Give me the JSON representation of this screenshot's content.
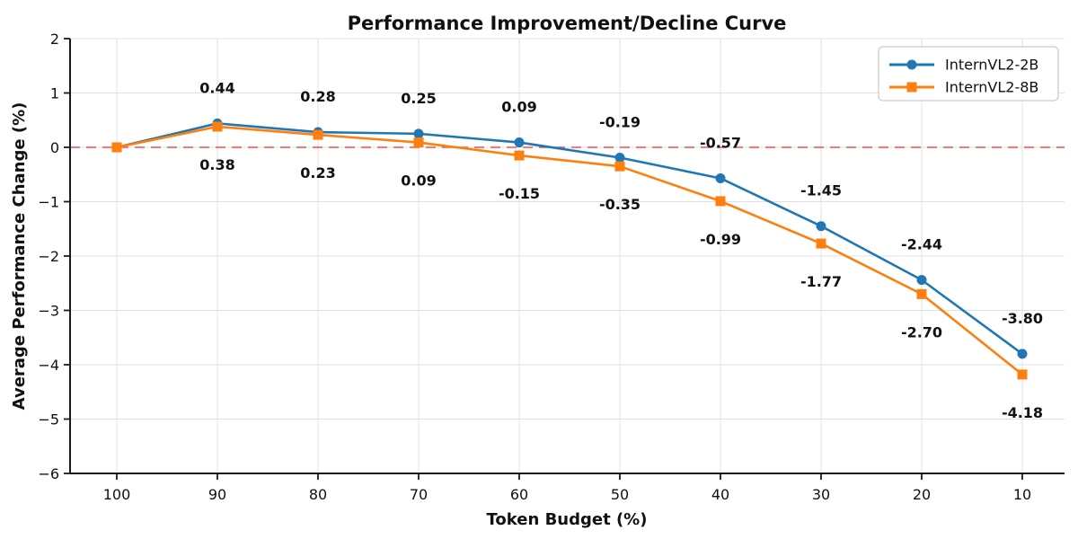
{
  "figure": {
    "background": "#ffffff"
  },
  "chart_data": {
    "type": "line",
    "title": "Performance Improvement/Decline Curve",
    "xlabel": "Token Budget (%)",
    "ylabel": "Average Performance Change (%)",
    "x": [
      100,
      90,
      80,
      70,
      60,
      50,
      40,
      30,
      20,
      10
    ],
    "xtick_labels": [
      "100",
      "90",
      "80",
      "70",
      "60",
      "50",
      "40",
      "30",
      "20",
      "10"
    ],
    "x_axis_reversed": true,
    "ylim": [
      -6,
      2
    ],
    "ytick_values": [
      2,
      1,
      0,
      -1,
      -2,
      -3,
      -4,
      -5,
      -6
    ],
    "ytick_labels": [
      "2",
      "1",
      "0",
      "−1",
      "−2",
      "−3",
      "−4",
      "−5",
      "−6"
    ],
    "grid": true,
    "zero_line": {
      "value": 0,
      "color": "#ff2222",
      "style": "dashed"
    },
    "data_label_colors": {
      "positive": "#008000",
      "negative": "#ff0000"
    },
    "legend": {
      "position": "upper right"
    },
    "series": [
      {
        "name": "InternVL2-2B",
        "color": "#1f77b4",
        "marker": "circle",
        "label_side": "above",
        "values": [
          0.0,
          0.44,
          0.28,
          0.25,
          0.09,
          -0.19,
          -0.57,
          -1.45,
          -2.44,
          -3.8
        ],
        "point_labels": [
          "",
          "0.44",
          "0.28",
          "0.25",
          "0.09",
          "-0.19",
          "-0.57",
          "-1.45",
          "-2.44",
          "-3.80"
        ]
      },
      {
        "name": "InternVL2-8B",
        "color": "#ff7f0e",
        "marker": "square",
        "label_side": "below",
        "values": [
          0.0,
          0.38,
          0.23,
          0.09,
          -0.15,
          -0.35,
          -0.99,
          -1.77,
          -2.7,
          -4.18
        ],
        "point_labels": [
          "",
          "0.38",
          "0.23",
          "0.09",
          "-0.15",
          "-0.35",
          "-0.99",
          "-1.77",
          "-2.70",
          "-4.18"
        ]
      }
    ]
  }
}
